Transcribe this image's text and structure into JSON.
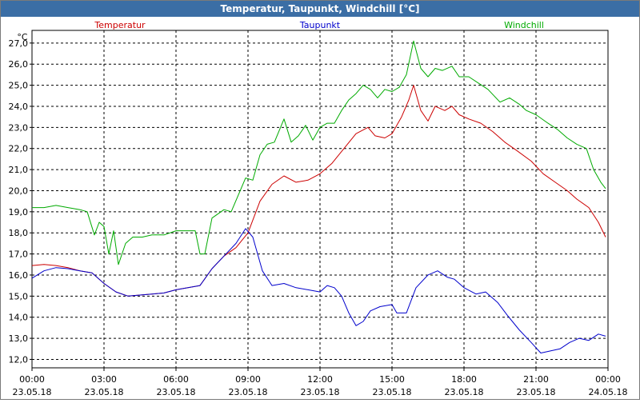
{
  "window": {
    "title": "Temperatur, Taupunkt, Windchill [°C]"
  },
  "chart_data": {
    "type": "line",
    "title": "Temperatur, Taupunkt, Windchill [°C]",
    "ylabel": "°C",
    "xlabel": "",
    "ylim": [
      11.6,
      27.6
    ],
    "xlim": [
      0,
      24
    ],
    "grid": true,
    "legend": "top",
    "y_ticks": [
      12.0,
      13.0,
      14.0,
      15.0,
      16.0,
      17.0,
      18.0,
      19.0,
      20.0,
      21.0,
      22.0,
      23.0,
      24.0,
      25.0,
      26.0,
      27.0
    ],
    "y_tick_labels": [
      "12,0",
      "13,0",
      "14,0",
      "15,0",
      "16,0",
      "17,0",
      "18,0",
      "19,0",
      "20,0",
      "21,0",
      "22,0",
      "23,0",
      "24,0",
      "25,0",
      "26,0",
      "27,0"
    ],
    "x_ticks": [
      {
        "time": "00:00",
        "date": "23.05.18"
      },
      {
        "time": "03:00",
        "date": "23.05.18"
      },
      {
        "time": "06:00",
        "date": "23.05.18"
      },
      {
        "time": "09:00",
        "date": "23.05.18"
      },
      {
        "time": "12:00",
        "date": "23.05.18"
      },
      {
        "time": "15:00",
        "date": "23.05.18"
      },
      {
        "time": "18:00",
        "date": "23.05.18"
      },
      {
        "time": "21:00",
        "date": "23.05.18"
      },
      {
        "time": "00:00",
        "date": "24.05.18"
      }
    ],
    "series": [
      {
        "name": "Temperatur",
        "color": "#cc0000",
        "points": [
          [
            0.0,
            16.45
          ],
          [
            0.5,
            16.5
          ],
          [
            1.0,
            16.45
          ],
          [
            1.5,
            16.35
          ],
          [
            2.0,
            16.2
          ],
          [
            2.5,
            16.1
          ],
          [
            3.0,
            15.6
          ],
          [
            3.5,
            15.2
          ],
          [
            4.0,
            15.0
          ],
          [
            4.5,
            15.05
          ],
          [
            5.0,
            15.1
          ],
          [
            5.5,
            15.15
          ],
          [
            6.0,
            15.3
          ],
          [
            6.5,
            15.4
          ],
          [
            7.0,
            15.5
          ],
          [
            7.5,
            16.3
          ],
          [
            8.0,
            16.9
          ],
          [
            8.5,
            17.3
          ],
          [
            9.0,
            18.0
          ],
          [
            9.5,
            19.5
          ],
          [
            10.0,
            20.3
          ],
          [
            10.5,
            20.7
          ],
          [
            11.0,
            20.4
          ],
          [
            11.5,
            20.5
          ],
          [
            12.0,
            20.8
          ],
          [
            12.5,
            21.3
          ],
          [
            13.0,
            22.0
          ],
          [
            13.5,
            22.7
          ],
          [
            14.0,
            23.0
          ],
          [
            14.3,
            22.6
          ],
          [
            14.7,
            22.5
          ],
          [
            15.0,
            22.7
          ],
          [
            15.4,
            23.5
          ],
          [
            15.7,
            24.3
          ],
          [
            15.9,
            25.0
          ],
          [
            16.2,
            23.8
          ],
          [
            16.5,
            23.3
          ],
          [
            16.8,
            24.0
          ],
          [
            17.2,
            23.8
          ],
          [
            17.5,
            24.0
          ],
          [
            17.8,
            23.6
          ],
          [
            18.2,
            23.4
          ],
          [
            18.7,
            23.2
          ],
          [
            19.2,
            22.8
          ],
          [
            19.7,
            22.3
          ],
          [
            20.2,
            21.9
          ],
          [
            20.8,
            21.4
          ],
          [
            21.3,
            20.8
          ],
          [
            21.8,
            20.4
          ],
          [
            22.3,
            20.0
          ],
          [
            22.7,
            19.6
          ],
          [
            23.2,
            19.2
          ],
          [
            23.6,
            18.5
          ],
          [
            23.9,
            17.8
          ]
        ]
      },
      {
        "name": "Taupunkt",
        "color": "#0000cc",
        "points": [
          [
            0.0,
            15.85
          ],
          [
            0.5,
            16.2
          ],
          [
            1.0,
            16.35
          ],
          [
            1.5,
            16.3
          ],
          [
            2.0,
            16.2
          ],
          [
            2.5,
            16.1
          ],
          [
            3.0,
            15.6
          ],
          [
            3.5,
            15.2
          ],
          [
            4.0,
            15.0
          ],
          [
            4.5,
            15.05
          ],
          [
            5.0,
            15.1
          ],
          [
            5.5,
            15.15
          ],
          [
            6.0,
            15.3
          ],
          [
            6.5,
            15.4
          ],
          [
            7.0,
            15.5
          ],
          [
            7.5,
            16.3
          ],
          [
            8.0,
            16.9
          ],
          [
            8.5,
            17.5
          ],
          [
            8.9,
            18.2
          ],
          [
            9.2,
            17.8
          ],
          [
            9.6,
            16.2
          ],
          [
            10.0,
            15.5
          ],
          [
            10.5,
            15.6
          ],
          [
            11.0,
            15.4
          ],
          [
            11.5,
            15.3
          ],
          [
            12.0,
            15.2
          ],
          [
            12.3,
            15.5
          ],
          [
            12.6,
            15.4
          ],
          [
            12.9,
            15.0
          ],
          [
            13.2,
            14.2
          ],
          [
            13.5,
            13.6
          ],
          [
            13.8,
            13.8
          ],
          [
            14.1,
            14.3
          ],
          [
            14.5,
            14.5
          ],
          [
            15.0,
            14.6
          ],
          [
            15.2,
            14.2
          ],
          [
            15.6,
            14.2
          ],
          [
            16.0,
            15.4
          ],
          [
            16.5,
            16.0
          ],
          [
            16.9,
            16.2
          ],
          [
            17.3,
            15.9
          ],
          [
            17.6,
            15.8
          ],
          [
            18.0,
            15.4
          ],
          [
            18.5,
            15.1
          ],
          [
            18.9,
            15.2
          ],
          [
            19.4,
            14.7
          ],
          [
            19.8,
            14.1
          ],
          [
            20.3,
            13.4
          ],
          [
            20.8,
            12.8
          ],
          [
            21.2,
            12.3
          ],
          [
            21.6,
            12.4
          ],
          [
            22.0,
            12.5
          ],
          [
            22.4,
            12.8
          ],
          [
            22.8,
            13.0
          ],
          [
            23.2,
            12.9
          ],
          [
            23.6,
            13.2
          ],
          [
            23.9,
            13.1
          ]
        ]
      },
      {
        "name": "Windchill",
        "color": "#00aa00",
        "points": [
          [
            0.0,
            19.2
          ],
          [
            0.5,
            19.2
          ],
          [
            1.0,
            19.3
          ],
          [
            1.5,
            19.2
          ],
          [
            2.0,
            19.1
          ],
          [
            2.3,
            19.0
          ],
          [
            2.6,
            17.9
          ],
          [
            2.8,
            18.5
          ],
          [
            3.0,
            18.3
          ],
          [
            3.2,
            17.0
          ],
          [
            3.4,
            18.1
          ],
          [
            3.6,
            16.5
          ],
          [
            3.9,
            17.5
          ],
          [
            4.2,
            17.8
          ],
          [
            4.6,
            17.8
          ],
          [
            5.0,
            17.9
          ],
          [
            5.5,
            17.9
          ],
          [
            6.0,
            18.1
          ],
          [
            6.5,
            18.1
          ],
          [
            6.8,
            18.1
          ],
          [
            7.0,
            17.0
          ],
          [
            7.2,
            17.0
          ],
          [
            7.5,
            18.7
          ],
          [
            8.0,
            19.1
          ],
          [
            8.3,
            19.0
          ],
          [
            8.6,
            19.8
          ],
          [
            8.9,
            20.6
          ],
          [
            9.2,
            20.5
          ],
          [
            9.5,
            21.7
          ],
          [
            9.8,
            22.2
          ],
          [
            10.1,
            22.3
          ],
          [
            10.5,
            23.4
          ],
          [
            10.8,
            22.3
          ],
          [
            11.1,
            22.6
          ],
          [
            11.4,
            23.1
          ],
          [
            11.7,
            22.4
          ],
          [
            12.0,
            23.0
          ],
          [
            12.3,
            23.2
          ],
          [
            12.6,
            23.2
          ],
          [
            12.9,
            23.8
          ],
          [
            13.2,
            24.3
          ],
          [
            13.5,
            24.6
          ],
          [
            13.8,
            25.0
          ],
          [
            14.1,
            24.8
          ],
          [
            14.4,
            24.4
          ],
          [
            14.7,
            24.8
          ],
          [
            15.0,
            24.7
          ],
          [
            15.3,
            24.9
          ],
          [
            15.6,
            25.5
          ],
          [
            15.9,
            27.1
          ],
          [
            16.2,
            25.8
          ],
          [
            16.5,
            25.4
          ],
          [
            16.8,
            25.8
          ],
          [
            17.1,
            25.7
          ],
          [
            17.5,
            25.9
          ],
          [
            17.8,
            25.4
          ],
          [
            18.2,
            25.4
          ],
          [
            18.6,
            25.1
          ],
          [
            19.0,
            24.8
          ],
          [
            19.5,
            24.2
          ],
          [
            19.9,
            24.4
          ],
          [
            20.3,
            24.1
          ],
          [
            20.6,
            23.8
          ],
          [
            21.0,
            23.6
          ],
          [
            21.5,
            23.2
          ],
          [
            21.9,
            22.9
          ],
          [
            22.3,
            22.5
          ],
          [
            22.7,
            22.2
          ],
          [
            23.1,
            22.0
          ],
          [
            23.4,
            21.0
          ],
          [
            23.7,
            20.4
          ],
          [
            23.9,
            20.1
          ]
        ]
      }
    ]
  }
}
